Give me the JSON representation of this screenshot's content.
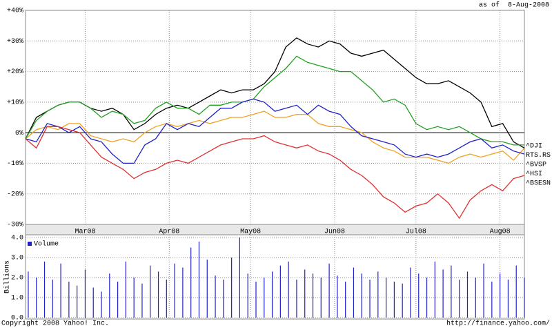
{
  "header": {
    "as_of": "as of  8-Aug-2008"
  },
  "footer": {
    "copyright": "Copyright 2008 Yahoo! Inc.",
    "url": "http://finance.yahoo.com/"
  },
  "chart_data": [
    {
      "type": "line",
      "x": [
        0,
        4,
        8,
        12,
        16,
        20,
        24,
        28,
        32,
        36,
        40,
        44,
        48,
        52,
        56,
        60,
        64,
        68,
        72,
        76,
        80,
        84,
        88,
        92,
        96,
        100,
        104,
        108,
        112,
        116,
        120,
        124,
        128,
        132,
        136,
        140,
        144,
        148,
        152,
        156,
        160,
        164,
        168,
        172,
        176,
        180,
        184
      ],
      "xlim": [
        0,
        184
      ],
      "xticks": [
        {
          "value": 22,
          "label": "Mar08"
        },
        {
          "value": 53,
          "label": "Apr08"
        },
        {
          "value": 83,
          "label": "May08"
        },
        {
          "value": 114,
          "label": "Jun08"
        },
        {
          "value": 144,
          "label": "Jul08"
        },
        {
          "value": 175,
          "label": "Aug08"
        }
      ],
      "ylim": [
        -30,
        40
      ],
      "yticks": [
        {
          "value": 40,
          "label": "+40%"
        },
        {
          "value": 30,
          "label": "+30%"
        },
        {
          "value": 20,
          "label": "+20%"
        },
        {
          "value": 10,
          "label": "+10%"
        },
        {
          "value": 0,
          "label": "0%"
        },
        {
          "value": -10,
          "label": "-10%"
        },
        {
          "value": -20,
          "label": "-20%"
        },
        {
          "value": -30,
          "label": "-30%"
        }
      ],
      "grid": true,
      "legend": "right",
      "series": [
        {
          "name": "^DJI",
          "color": "#f0a020",
          "values": [
            -2,
            1,
            2,
            1,
            3,
            3,
            -1,
            -2,
            -3,
            -2,
            -3,
            0,
            2,
            3,
            2,
            3,
            4,
            3,
            4,
            5,
            5,
            6,
            7,
            5,
            5,
            6,
            6,
            3,
            2,
            2,
            1,
            0,
            -3,
            -5,
            -6,
            -8,
            -8,
            -8,
            -9,
            -10,
            -8,
            -7,
            -8,
            -7,
            -6,
            -9,
            -5
          ]
        },
        {
          "name": "RTS.RS",
          "color": "#000000",
          "values": [
            -2,
            5,
            7,
            9,
            10,
            10,
            8,
            7,
            8,
            6,
            1,
            3,
            6,
            8,
            9,
            8,
            10,
            12,
            14,
            13,
            14,
            14,
            16,
            20,
            28,
            31,
            29,
            28,
            30,
            29,
            26,
            25,
            26,
            27,
            24,
            21,
            18,
            16,
            16,
            17,
            15,
            13,
            10,
            2,
            3,
            -3,
            -5
          ]
        },
        {
          "name": "^BVSP",
          "color": "#20a020",
          "values": [
            -2,
            4,
            7,
            9,
            10,
            10,
            8,
            5,
            7,
            6,
            3,
            4,
            8,
            10,
            8,
            8,
            6,
            9,
            9,
            10,
            10,
            11,
            15,
            18,
            21,
            25,
            23,
            22,
            21,
            20,
            20,
            17,
            14,
            10,
            11,
            9,
            3,
            1,
            2,
            1,
            2,
            0,
            -2,
            -3,
            -3,
            -4,
            -4
          ]
        },
        {
          "name": "^HSI",
          "color": "#2020c8",
          "values": [
            -2,
            -3,
            3,
            2,
            0,
            2,
            -2,
            -3,
            -7,
            -10,
            -10,
            -4,
            -2,
            3,
            1,
            3,
            2,
            5,
            8,
            8,
            10,
            11,
            10,
            7,
            8,
            9,
            6,
            9,
            7,
            6,
            2,
            -1,
            -2,
            -3,
            -4,
            -7,
            -8,
            -7,
            -8,
            -7,
            -5,
            -3,
            -2,
            -5,
            -4,
            -6,
            -7
          ]
        },
        {
          "name": "^BSESN",
          "color": "#e03030",
          "values": [
            -2,
            -5,
            2,
            2,
            1,
            0,
            -4,
            -8,
            -10,
            -12,
            -15,
            -13,
            -12,
            -10,
            -9,
            -10,
            -8,
            -6,
            -4,
            -3,
            -2,
            -2,
            -1,
            -3,
            -4,
            -5,
            -4,
            -6,
            -7,
            -9,
            -12,
            -14,
            -17,
            -21,
            -23,
            -26,
            -24,
            -23,
            -20,
            -23,
            -28,
            -22,
            -19,
            -17,
            -19,
            -15,
            -14
          ]
        }
      ]
    },
    {
      "type": "bar",
      "y_label": "Billions",
      "x": [
        1,
        4,
        7,
        10,
        13,
        16,
        19,
        22,
        25,
        28,
        31,
        34,
        37,
        40,
        43,
        46,
        49,
        52,
        55,
        58,
        61,
        64,
        67,
        70,
        73,
        76,
        79,
        82,
        85,
        88,
        91,
        94,
        97,
        100,
        103,
        106,
        109,
        112,
        115,
        118,
        121,
        124,
        127,
        130,
        133,
        136,
        139,
        142,
        145,
        148,
        151,
        154,
        157,
        160,
        163,
        166,
        169,
        172,
        175,
        178,
        181,
        184
      ],
      "xlim": [
        0,
        184
      ],
      "ylim": [
        0,
        4
      ],
      "yticks": [
        {
          "value": 0,
          "label": "0.0"
        },
        {
          "value": 1,
          "label": "1.0"
        },
        {
          "value": 2,
          "label": "2.0"
        },
        {
          "value": 3,
          "label": "3.0"
        },
        {
          "value": 4,
          "label": "4.0"
        }
      ],
      "grid": true,
      "series": [
        {
          "name": "Volume",
          "color": "#2020c8",
          "values": [
            2.3,
            2.0,
            2.8,
            1.9,
            2.7,
            1.8,
            1.6,
            2.4,
            1.5,
            1.3,
            2.2,
            1.8,
            2.8,
            2.0,
            1.7,
            2.6,
            2.3,
            1.9,
            2.7,
            2.5,
            3.5,
            3.8,
            2.9,
            2.1,
            1.9,
            3.0,
            4.0,
            2.2,
            1.8,
            2.0,
            2.3,
            2.6,
            2.8,
            1.9,
            2.4,
            2.2,
            2.0,
            2.7,
            2.1,
            1.8,
            2.5,
            2.2,
            1.9,
            2.3,
            2.0,
            1.8,
            1.7,
            2.5,
            2.2,
            2.0,
            2.8,
            2.4,
            2.6,
            1.9,
            2.3,
            2.0,
            2.7,
            1.8,
            2.2,
            1.9,
            2.6,
            2.0
          ]
        }
      ]
    }
  ]
}
